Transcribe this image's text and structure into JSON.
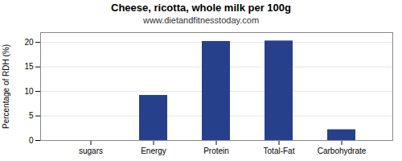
{
  "chart_data": {
    "type": "bar",
    "title": "Cheese, ricotta, whole milk per 100g",
    "subtitle": "www.dietandfitnesstoday.com",
    "categories": [
      "sugars",
      "Energy",
      "Protein",
      "Total-Fat",
      "Carbohydrate"
    ],
    "values": [
      0,
      9.2,
      20.2,
      20.3,
      2.2
    ],
    "color": "#27408B",
    "ylabel": "Percentage of RDH (%)",
    "ylim": [
      0,
      22
    ],
    "yticks": [
      0,
      5,
      10,
      15,
      20
    ],
    "grid": true
  }
}
